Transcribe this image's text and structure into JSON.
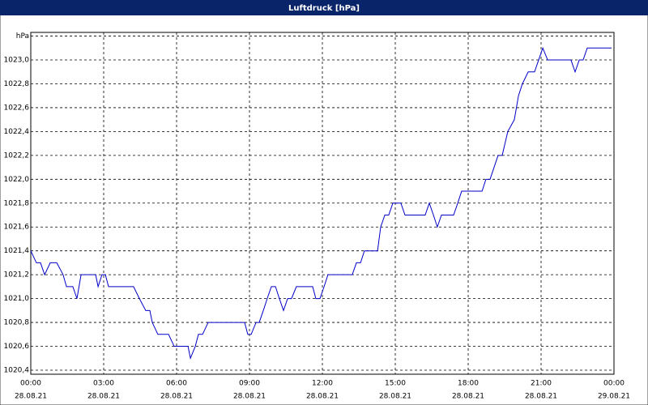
{
  "chart_data": {
    "type": "line",
    "title": "Luftdruck [hPa]",
    "xlim": [
      0,
      24
    ],
    "ylim": [
      1020.366,
      1023.231
    ],
    "grid": true,
    "xticks": [
      {
        "value": 0,
        "label": "00:00"
      },
      {
        "value": 3,
        "label": "03:00"
      },
      {
        "value": 6,
        "label": "06:00"
      },
      {
        "value": 9,
        "label": "09:00"
      },
      {
        "value": 12,
        "label": "12:00"
      },
      {
        "value": 15,
        "label": "15:00"
      },
      {
        "value": 18,
        "label": "18:00"
      },
      {
        "value": 21,
        "label": "21:00"
      },
      {
        "value": 24,
        "label": "00:00"
      }
    ],
    "xtick_dates": [
      "28.08.21",
      "28.08.21",
      "28.08.21",
      "28.08.21",
      "28.08.21",
      "28.08.21",
      "28.08.21",
      "28.08.21",
      "29.08.21"
    ],
    "yticks": [
      {
        "value": 1020.4,
        "label": "1020,4"
      },
      {
        "value": 1020.6,
        "label": "1020,6"
      },
      {
        "value": 1020.8,
        "label": "1020,8"
      },
      {
        "value": 1021.0,
        "label": "1021,0"
      },
      {
        "value": 1021.2,
        "label": "1021,2"
      },
      {
        "value": 1021.4,
        "label": "1021,4"
      },
      {
        "value": 1021.6,
        "label": "1021,6"
      },
      {
        "value": 1021.8,
        "label": "1021,8"
      },
      {
        "value": 1022.0,
        "label": "1022,0"
      },
      {
        "value": 1022.2,
        "label": "1022,2"
      },
      {
        "value": 1022.4,
        "label": "1022,4"
      },
      {
        "value": 1022.6,
        "label": "1022,6"
      },
      {
        "value": 1022.8,
        "label": "1022,8"
      },
      {
        "value": 1023.0,
        "label": "1023,0"
      },
      {
        "value": 1023.2,
        "label": "hPa"
      }
    ],
    "series": [
      {
        "color": "#0000c8",
        "x": [
          0,
          0.23,
          0.4,
          0.57,
          0.8,
          1.07,
          1.33,
          1.47,
          1.73,
          1.9,
          2.07,
          2.67,
          2.77,
          2.93,
          3.07,
          3.2,
          4.23,
          4.47,
          4.73,
          4.9,
          5.0,
          5.23,
          5.67,
          5.9,
          6.47,
          6.57,
          6.77,
          6.9,
          7.07,
          7.3,
          8.8,
          8.93,
          9.07,
          9.27,
          9.4,
          9.57,
          9.73,
          9.9,
          10.07,
          10.23,
          10.4,
          10.57,
          10.73,
          10.93,
          11.6,
          11.73,
          11.9,
          12.07,
          12.23,
          13.23,
          13.4,
          13.57,
          13.73,
          14.27,
          14.4,
          14.57,
          14.73,
          14.9,
          15.23,
          15.4,
          16.23,
          16.4,
          16.57,
          16.73,
          16.9,
          17.4,
          17.57,
          17.73,
          18.57,
          18.73,
          18.9,
          19.23,
          19.4,
          19.63,
          19.9,
          20.07,
          20.23,
          20.47,
          20.73,
          20.9,
          21.07,
          21.27,
          22.23,
          22.4,
          22.57,
          22.73,
          22.9,
          23.9
        ],
        "values": [
          1021.4,
          1021.3,
          1021.3,
          1021.2,
          1021.3,
          1021.3,
          1021.2,
          1021.1,
          1021.1,
          1021.0,
          1021.2,
          1021.2,
          1021.1,
          1021.2,
          1021.2,
          1021.1,
          1021.1,
          1021.0,
          1020.9,
          1020.9,
          1020.8,
          1020.7,
          1020.7,
          1020.6,
          1020.6,
          1020.5,
          1020.6,
          1020.7,
          1020.7,
          1020.8,
          1020.8,
          1020.7,
          1020.7,
          1020.8,
          1020.8,
          1020.9,
          1021.0,
          1021.1,
          1021.1,
          1021.0,
          1020.9,
          1021.0,
          1021.0,
          1021.1,
          1021.1,
          1021.0,
          1021.0,
          1021.1,
          1021.2,
          1021.2,
          1021.3,
          1021.3,
          1021.4,
          1021.4,
          1021.6,
          1021.7,
          1021.7,
          1021.8,
          1021.8,
          1021.7,
          1021.7,
          1021.8,
          1021.7,
          1021.6,
          1021.7,
          1021.7,
          1021.8,
          1021.9,
          1021.9,
          1022.0,
          1022.0,
          1022.2,
          1022.2,
          1022.4,
          1022.5,
          1022.7,
          1022.8,
          1022.9,
          1022.9,
          1023.0,
          1023.1,
          1023.0,
          1023.0,
          1022.9,
          1023.0,
          1023.0,
          1023.1,
          1023.1
        ]
      }
    ]
  }
}
